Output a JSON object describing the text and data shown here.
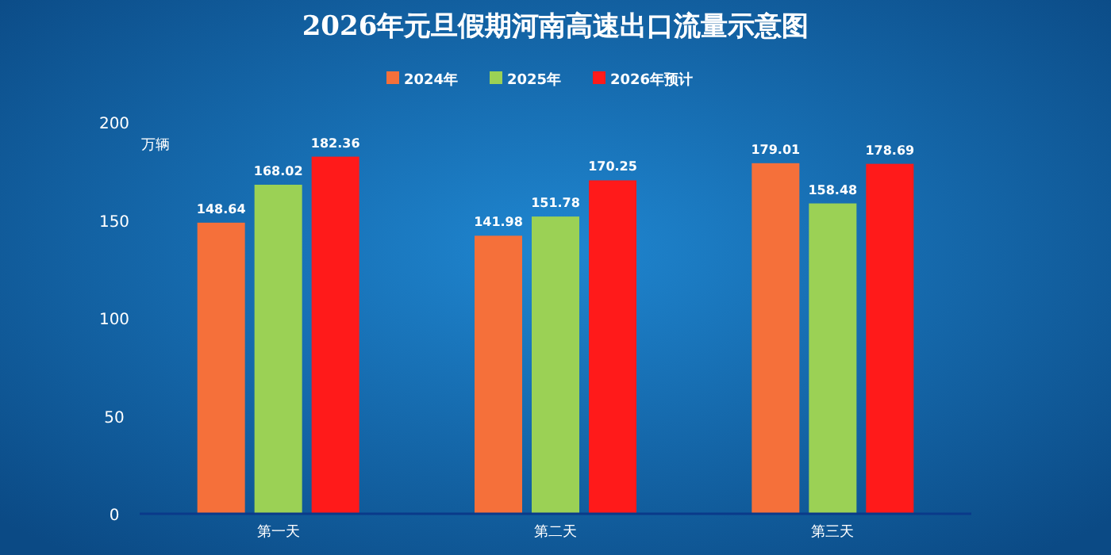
{
  "chart_data": {
    "type": "bar",
    "title": "2026年元旦假期河南高速出口流量示意图",
    "ylabel": "万辆",
    "categories": [
      "第一天",
      "第二天",
      "第三天"
    ],
    "series": [
      {
        "name": "2024年",
        "color": "#f5703a",
        "values": [
          148.64,
          141.98,
          179.01
        ]
      },
      {
        "name": "2025年",
        "color": "#9bd155",
        "values": [
          168.02,
          151.78,
          158.48
        ]
      },
      {
        "name": "2026年预计",
        "color": "#ff1a1a",
        "values": [
          182.36,
          170.25,
          178.69
        ]
      }
    ],
    "ylim": [
      0,
      200
    ],
    "yticks": [
      0,
      50,
      100,
      150,
      200
    ],
    "data_labels": true,
    "legend": "top",
    "grid": false
  }
}
